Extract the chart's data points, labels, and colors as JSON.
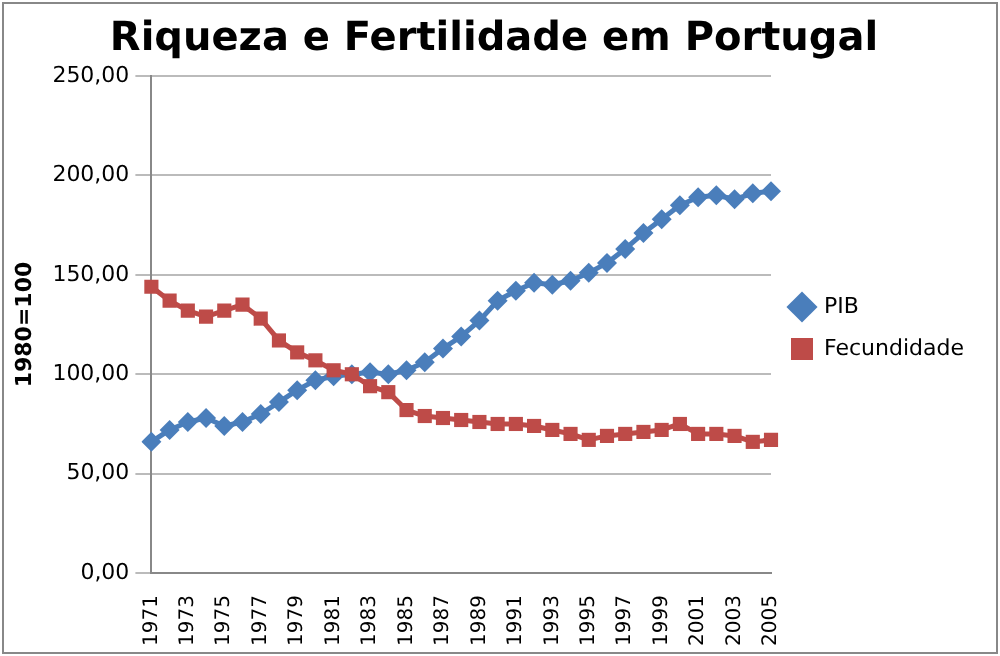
{
  "chart_data": {
    "type": "line",
    "title": "Riqueza e Fertilidade em Portugal",
    "ylabel": "1980=100",
    "categories": [
      "1971",
      null,
      "1973",
      null,
      "1975",
      null,
      "1977",
      null,
      "1979",
      null,
      "1981",
      null,
      "1983",
      null,
      "1985",
      null,
      "1987",
      null,
      "1989",
      null,
      "1991",
      null,
      "1993",
      null,
      "1995",
      null,
      "1997",
      null,
      "1999",
      null,
      "2001",
      null,
      "2003",
      null,
      "2005"
    ],
    "series": [
      {
        "name": "PIB",
        "color": "#4a7ebb",
        "marker": "diamond",
        "values": [
          66,
          72,
          76,
          78,
          74,
          76,
          80,
          86,
          92,
          97,
          99,
          100,
          101,
          100,
          102,
          106,
          113,
          119,
          127,
          137,
          142,
          146,
          145,
          147,
          151,
          156,
          163,
          171,
          178,
          185,
          189,
          190,
          188,
          191,
          192
        ]
      },
      {
        "name": "Fecundidade",
        "color": "#be4b48",
        "marker": "square",
        "values": [
          144,
          137,
          132,
          129,
          132,
          135,
          128,
          117,
          111,
          107,
          102,
          100,
          94,
          91,
          82,
          79,
          78,
          77,
          76,
          75,
          75,
          74,
          72,
          70,
          67,
          69,
          70,
          71,
          72,
          75,
          70,
          70,
          69,
          66,
          67
        ]
      }
    ],
    "ylim": [
      0,
      250
    ],
    "yticks": [
      {
        "value": 0,
        "label": "0,00"
      },
      {
        "value": 50,
        "label": "50,00"
      },
      {
        "value": 100,
        "label": "100,00"
      },
      {
        "value": 150,
        "label": "150,00"
      },
      {
        "value": 200,
        "label": "200,00"
      },
      {
        "value": 250,
        "label": "250,00"
      }
    ],
    "grid": "y",
    "legend": "right"
  }
}
